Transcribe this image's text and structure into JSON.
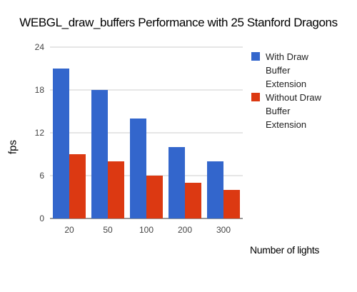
{
  "chart_data": {
    "type": "bar",
    "title": "WEBGL_draw_buffers Performance with 25 Stanford Dragons",
    "xlabel": "Number of lights",
    "ylabel": "fps",
    "categories": [
      "20",
      "50",
      "100",
      "200",
      "300"
    ],
    "ylim": [
      0,
      24
    ],
    "yticks": [
      "0",
      "6",
      "12",
      "18",
      "24"
    ],
    "grid": true,
    "legend_position": "top-right",
    "series": [
      {
        "name": "With Draw Buffer Extension",
        "color": "#3366cc",
        "values": [
          21,
          18,
          14,
          10,
          8
        ]
      },
      {
        "name": "Without Draw Buffer Extension",
        "color": "#dc3912",
        "values": [
          9,
          8,
          6,
          5,
          4
        ]
      }
    ]
  }
}
